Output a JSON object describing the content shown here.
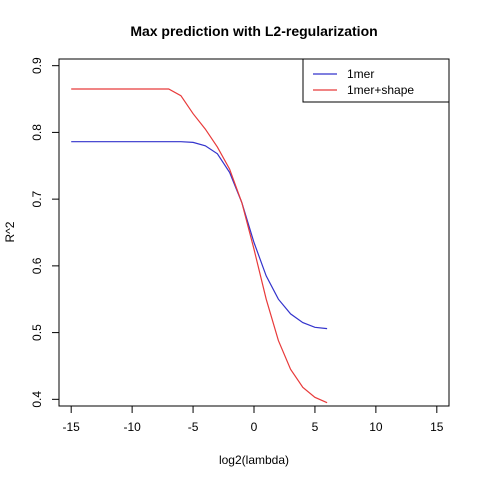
{
  "chart_data": {
    "type": "line",
    "title": "Max prediction with L2-regularization",
    "xlabel": "log2(lambda)",
    "ylabel": "R^2",
    "xlim": [
      -16,
      16
    ],
    "ylim": [
      0.39,
      0.91
    ],
    "xticks": [
      -15,
      -10,
      -5,
      0,
      5,
      10,
      15
    ],
    "yticks": [
      0.4,
      0.5,
      0.6,
      0.7,
      0.8,
      0.9
    ],
    "grid": false,
    "legend_position": "top-right",
    "series": [
      {
        "name": "1mer",
        "color": "#3333cc",
        "x": [
          -15,
          -14,
          -13,
          -12,
          -11,
          -10,
          -9,
          -8,
          -7,
          -6,
          -5,
          -4,
          -3,
          -2,
          -1,
          0,
          1,
          2,
          3,
          4,
          5,
          6
        ],
        "y": [
          0.786,
          0.786,
          0.786,
          0.786,
          0.786,
          0.786,
          0.786,
          0.786,
          0.786,
          0.786,
          0.785,
          0.78,
          0.768,
          0.74,
          0.695,
          0.635,
          0.585,
          0.55,
          0.528,
          0.515,
          0.508,
          0.506
        ]
      },
      {
        "name": "1mer+shape",
        "color": "#e83a3a",
        "x": [
          -15,
          -14,
          -13,
          -12,
          -11,
          -10,
          -9,
          -8,
          -7,
          -6,
          -5,
          -4,
          -3,
          -2,
          -1,
          0,
          1,
          2,
          3,
          4,
          5,
          6
        ],
        "y": [
          0.865,
          0.865,
          0.865,
          0.865,
          0.865,
          0.865,
          0.865,
          0.865,
          0.865,
          0.855,
          0.828,
          0.805,
          0.778,
          0.745,
          0.695,
          0.625,
          0.55,
          0.488,
          0.445,
          0.418,
          0.403,
          0.395
        ]
      }
    ]
  }
}
